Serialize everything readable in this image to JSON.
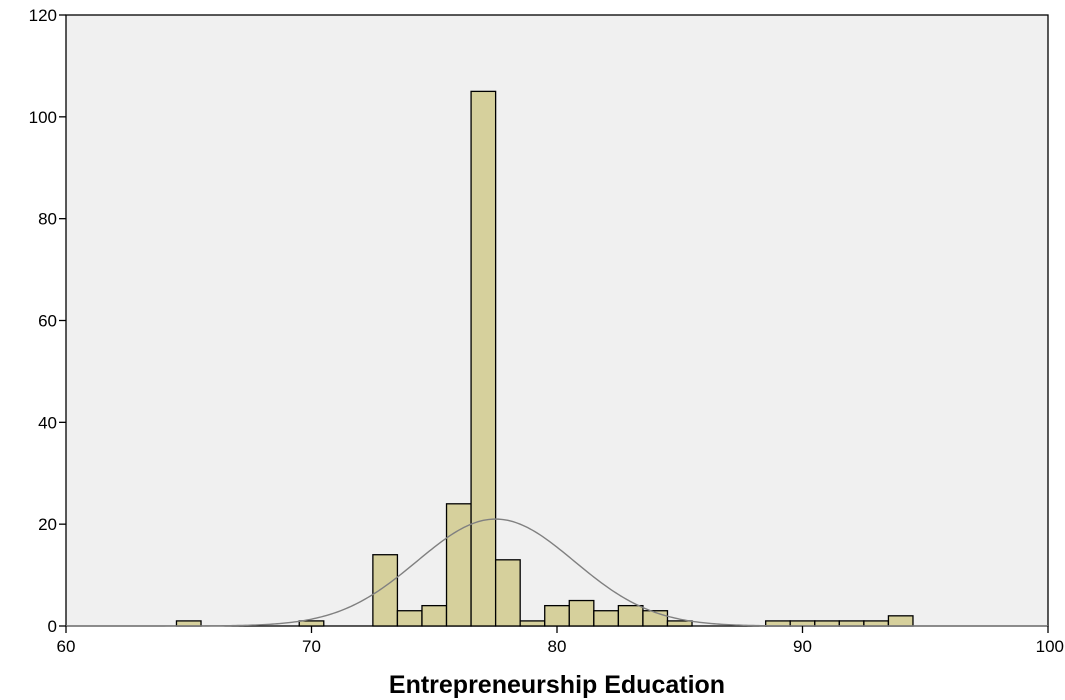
{
  "chart_data": {
    "type": "bar",
    "xlabel": "Entrepreneurship Education",
    "ylabel": "",
    "xlim": [
      60,
      100
    ],
    "ylim": [
      0,
      120
    ],
    "xticks": [
      60,
      70,
      80,
      90,
      100
    ],
    "yticks": [
      0,
      20,
      40,
      60,
      80,
      100,
      120
    ],
    "grid": false,
    "bin_width": 1,
    "bins": [
      {
        "x0": 64.5,
        "x1": 65.5,
        "count": 1
      },
      {
        "x0": 69.5,
        "x1": 70.5,
        "count": 1
      },
      {
        "x0": 72.5,
        "x1": 73.5,
        "count": 14
      },
      {
        "x0": 73.5,
        "x1": 74.5,
        "count": 3
      },
      {
        "x0": 74.5,
        "x1": 75.5,
        "count": 4
      },
      {
        "x0": 75.5,
        "x1": 76.5,
        "count": 24
      },
      {
        "x0": 76.5,
        "x1": 77.5,
        "count": 105
      },
      {
        "x0": 77.5,
        "x1": 78.5,
        "count": 13
      },
      {
        "x0": 78.5,
        "x1": 79.5,
        "count": 1
      },
      {
        "x0": 79.5,
        "x1": 80.5,
        "count": 4
      },
      {
        "x0": 80.5,
        "x1": 81.5,
        "count": 5
      },
      {
        "x0": 81.5,
        "x1": 82.5,
        "count": 3
      },
      {
        "x0": 82.5,
        "x1": 83.5,
        "count": 4
      },
      {
        "x0": 83.5,
        "x1": 84.5,
        "count": 3
      },
      {
        "x0": 84.5,
        "x1": 85.5,
        "count": 1
      },
      {
        "x0": 88.5,
        "x1": 89.5,
        "count": 1
      },
      {
        "x0": 89.5,
        "x1": 90.5,
        "count": 1
      },
      {
        "x0": 90.5,
        "x1": 91.5,
        "count": 1
      },
      {
        "x0": 91.5,
        "x1": 92.5,
        "count": 1
      },
      {
        "x0": 92.5,
        "x1": 93.5,
        "count": 1
      },
      {
        "x0": 93.5,
        "x1": 94.5,
        "count": 2
      }
    ],
    "normal_curve": {
      "mean": 77.5,
      "sd": 3.2,
      "peak": 21
    },
    "colors": {
      "bar": "#d6d09c",
      "plot_background": "#f0f0f0",
      "curve": "#808080"
    }
  }
}
